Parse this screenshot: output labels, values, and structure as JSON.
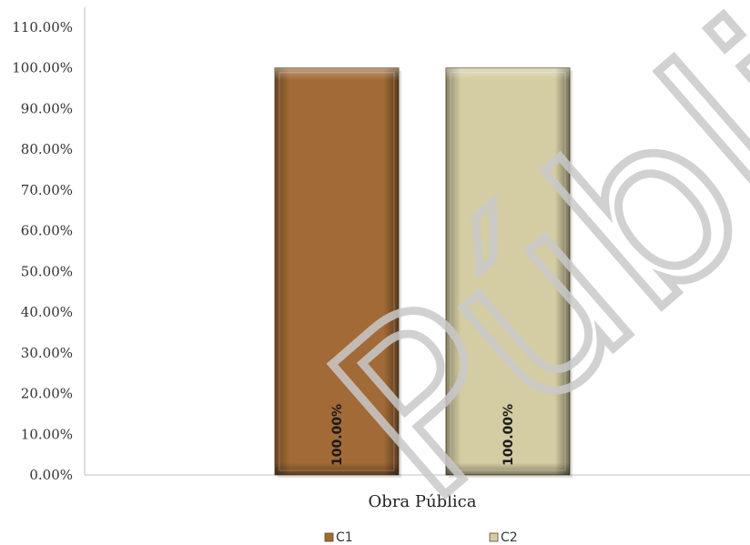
{
  "chart_data": {
    "type": "bar",
    "categories": [
      "Obra Pública"
    ],
    "series": [
      {
        "name": "C1",
        "values": [
          100.0
        ],
        "color": "#a26a36",
        "label": "100.00%"
      },
      {
        "name": "C2",
        "values": [
          100.0
        ],
        "color": "#d4cca2",
        "label": "100.00%"
      }
    ],
    "ylim": [
      0,
      110
    ],
    "yticks": [
      0,
      10,
      20,
      30,
      40,
      50,
      60,
      70,
      80,
      90,
      100,
      110
    ],
    "ytick_labels": [
      "0.00%",
      "10.00%",
      "20.00%",
      "30.00%",
      "40.00%",
      "50.00%",
      "60.00%",
      "70.00%",
      "80.00%",
      "90.00%",
      "100.00%",
      "110.00%"
    ],
    "grid": false,
    "legend_position": "bottom",
    "title": "",
    "xlabel": "",
    "ylabel": ""
  },
  "watermark": {
    "text": "Pública",
    "color": "#c9c9c9"
  }
}
